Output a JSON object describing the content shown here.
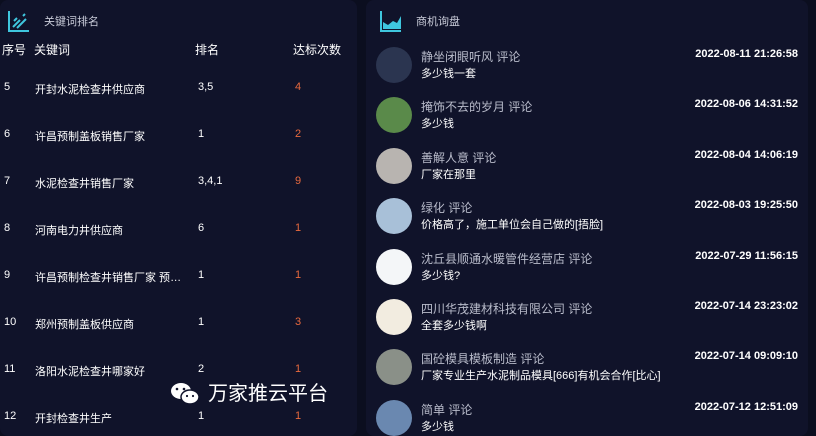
{
  "left": {
    "title": "关键词排名",
    "icon": "line-chart-icon",
    "headers": [
      "序号",
      "关键词",
      "排名",
      "达标次数"
    ],
    "rows": [
      {
        "no": "5",
        "keyword": "开封水泥检查井供应商",
        "rank": "3,5",
        "count": "4"
      },
      {
        "no": "6",
        "keyword": "许昌预制盖板销售厂家",
        "rank": "1",
        "count": "2"
      },
      {
        "no": "7",
        "keyword": "水泥检查井销售厂家",
        "rank": "3,4,1",
        "count": "9"
      },
      {
        "no": "8",
        "keyword": "河南电力井供应商",
        "rank": "6",
        "count": "1"
      },
      {
        "no": "9",
        "keyword": "许昌预制检查井销售厂家 预制检查井",
        "rank": "1",
        "count": "1"
      },
      {
        "no": "10",
        "keyword": "郑州预制盖板供应商",
        "rank": "1",
        "count": "3"
      },
      {
        "no": "11",
        "keyword": "洛阳水泥检查井哪家好",
        "rank": "2",
        "count": "1"
      },
      {
        "no": "12",
        "keyword": "开封检查井生产",
        "rank": "1",
        "count": "1"
      }
    ]
  },
  "right": {
    "title": "商机询盘",
    "icon": "area-chart-icon",
    "items": [
      {
        "name": "静坐闭眼听风  评论",
        "message": "多少钱一套",
        "time": "2022-08-11 21:26:58",
        "avatar": "#2b3550"
      },
      {
        "name": "掩饰不去的岁月  评论",
        "message": "多少钱",
        "time": "2022-08-06 14:31:52",
        "avatar": "#5a8a4a"
      },
      {
        "name": "善解人意  评论",
        "message": "厂家在那里",
        "time": "2022-08-04 14:06:19",
        "avatar": "#b8b4b0"
      },
      {
        "name": "绿化  评论",
        "message": "价格高了，施工单位会自己做的[捂脸]",
        "time": "2022-08-03 19:25:50",
        "avatar": "#a8c0d8"
      },
      {
        "name": "沈丘县顺通水暖管件经营店  评论",
        "message": "多少钱?",
        "time": "2022-07-29 11:56:15",
        "avatar": "#f4f6f8"
      },
      {
        "name": "四川华茂建材科技有限公司  评论",
        "message": "全套多少钱啊",
        "time": "2022-07-14 23:23:02",
        "avatar": "#f2ece0"
      },
      {
        "name": "国砼模具模板制造  评论",
        "message": "厂家专业生产水泥制品模具[666]有机会合作[比心]",
        "time": "2022-07-14 09:09:10",
        "avatar": "#8a9088"
      },
      {
        "name": "简单  评论",
        "message": "多少钱",
        "time": "2022-07-12 12:51:09",
        "avatar": "#6a88b0"
      }
    ]
  },
  "watermark": {
    "text": "万家推云平台",
    "icon": "wechat-icon"
  },
  "colors": {
    "accent": "#3fc6de",
    "count": "#e8693e",
    "bg": "#10132a"
  }
}
